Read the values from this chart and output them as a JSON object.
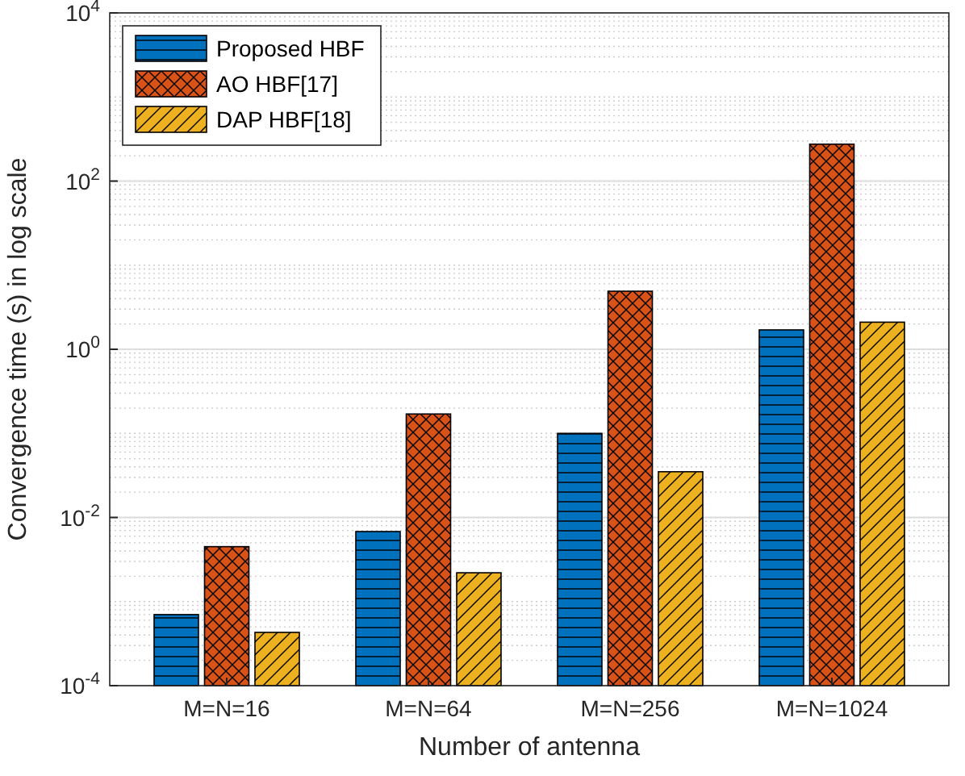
{
  "chart_data": {
    "type": "bar",
    "xlabel": "Number of antenna",
    "ylabel": "Convergence time (s) in log scale",
    "categories": [
      "M=N=16",
      "M=N=64",
      "M=N=256",
      "M=N=1024"
    ],
    "series": [
      {
        "name": "Proposed HBF",
        "color": "#0072bd",
        "values": [
          0.0007,
          0.0068,
          0.1,
          1.7
        ]
      },
      {
        "name": "AO HBF[17]",
        "color": "#d95319",
        "values": [
          0.0045,
          0.17,
          4.9,
          275
        ]
      },
      {
        "name": "DAP HBF[18]",
        "color": "#edb120",
        "values": [
          0.00043,
          0.0022,
          0.035,
          2.1
        ]
      }
    ],
    "log": true,
    "ylim": [
      0.0001,
      10000
    ],
    "yticks": [
      {
        "value": 0.0001,
        "label": "10$^{-4}$"
      },
      {
        "value": 0.01,
        "label": "10$^{-2}$"
      },
      {
        "value": 1,
        "label": "10$^{0}$"
      },
      {
        "value": 100,
        "label": "10$^{2}$"
      },
      {
        "value": 10000,
        "label": "10$^{4}$"
      }
    ],
    "grid": true,
    "legend": "top left"
  }
}
